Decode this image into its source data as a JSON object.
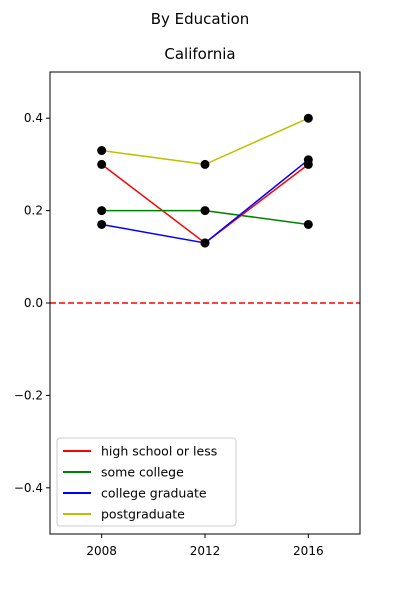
{
  "chart_data": {
    "type": "line",
    "title": "By Education",
    "subtitle": "California",
    "xlabel": "",
    "ylabel": "",
    "x": [
      2008,
      2012,
      2016
    ],
    "xlim": [
      2006,
      2018
    ],
    "ylim": [
      -0.5,
      0.5
    ],
    "x_ticks": [
      "2008",
      "2012",
      "2016"
    ],
    "y_ticks": [
      "−0.4",
      "−0.2",
      "0.0",
      "0.2",
      "0.4"
    ],
    "y_tick_values": [
      -0.4,
      -0.2,
      0.0,
      0.2,
      0.4
    ],
    "series": [
      {
        "name": "high school or less",
        "color": "#ff0000",
        "values": [
          0.3,
          0.13,
          0.3
        ]
      },
      {
        "name": "some college",
        "color": "#008000",
        "values": [
          0.2,
          0.2,
          0.17
        ]
      },
      {
        "name": "college graduate",
        "color": "#0000ff",
        "values": [
          0.17,
          0.13,
          0.31
        ]
      },
      {
        "name": "postgraduate",
        "color": "#bfbf00",
        "values": [
          0.33,
          0.3,
          0.4
        ]
      }
    ],
    "reference_line": {
      "y": 0.0,
      "color": "#ff0000",
      "style": "dashed"
    },
    "marker_color": "#000000",
    "grid": false,
    "legend_position": "lower-left"
  }
}
